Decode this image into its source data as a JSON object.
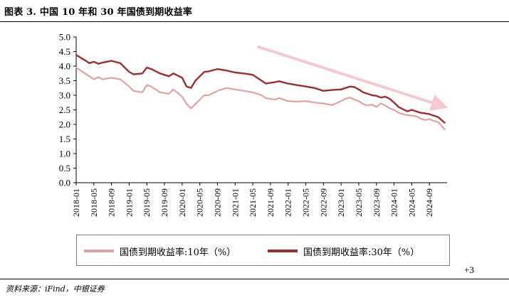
{
  "title": "图表 3.  中国 10 年和 30 年国债到期收益率",
  "source": "资料来源：iFind，中银证券",
  "side_note": "+3",
  "colors": {
    "y10": "#e0a2a2",
    "y30": "#9c2e31",
    "arrow": "#f4c9cf"
  },
  "chart_data": {
    "type": "line",
    "title": "中国 10 年和 30 年国债到期收益率",
    "xlabel": "",
    "ylabel": "",
    "ylim": [
      0.0,
      5.0
    ],
    "yticks": [
      "0.0",
      "0.5",
      "1.0",
      "1.5",
      "2.0",
      "2.5",
      "3.0",
      "3.5",
      "4.0",
      "4.5",
      "5.0"
    ],
    "xticks": [
      "2018-01",
      "2018-05",
      "2018-09",
      "2019-01",
      "2019-05",
      "2019-09",
      "2020-01",
      "2020-05",
      "2020-09",
      "2021-01",
      "2021-05",
      "2021-09",
      "2022-01",
      "2022-05",
      "2022-09",
      "2023-01",
      "2023-05",
      "2023-09",
      "2024-01",
      "2024-05",
      "2024-09"
    ],
    "x_months_from_2018_01": [
      0,
      2,
      3,
      4,
      5,
      6,
      8,
      10,
      12,
      13,
      15,
      16,
      17,
      19,
      21,
      22,
      24,
      25,
      26,
      27,
      28,
      29,
      30,
      32,
      34,
      36,
      38,
      40,
      42,
      43,
      45,
      46,
      48,
      50,
      52,
      54,
      56,
      58,
      60,
      61,
      62,
      63,
      64,
      65,
      66,
      67,
      68,
      69,
      70,
      71,
      72,
      73,
      74,
      75,
      76,
      77,
      78,
      79,
      80,
      81,
      82,
      83.5
    ],
    "series": [
      {
        "name": "国债到期收益率:10年（%）",
        "values": [
          3.95,
          3.75,
          3.65,
          3.55,
          3.62,
          3.55,
          3.6,
          3.55,
          3.3,
          3.15,
          3.1,
          3.35,
          3.3,
          3.1,
          3.05,
          3.2,
          2.95,
          2.7,
          2.55,
          2.7,
          2.85,
          3.0,
          3.0,
          3.15,
          3.25,
          3.2,
          3.15,
          3.1,
          3.0,
          2.9,
          2.85,
          2.9,
          2.8,
          2.78,
          2.8,
          2.75,
          2.72,
          2.66,
          2.8,
          2.88,
          2.92,
          2.85,
          2.8,
          2.7,
          2.65,
          2.68,
          2.6,
          2.72,
          2.65,
          2.55,
          2.5,
          2.4,
          2.35,
          2.32,
          2.3,
          2.28,
          2.2,
          2.15,
          2.18,
          2.12,
          2.08,
          1.82
        ]
      },
      {
        "name": "国债到期收益率:30年（%）",
        "values": [
          4.38,
          4.2,
          4.1,
          4.15,
          4.08,
          4.12,
          4.18,
          4.1,
          3.8,
          3.72,
          3.75,
          3.95,
          3.9,
          3.75,
          3.65,
          3.75,
          3.6,
          3.3,
          3.25,
          3.5,
          3.65,
          3.8,
          3.82,
          3.9,
          3.85,
          3.78,
          3.75,
          3.7,
          3.5,
          3.4,
          3.45,
          3.48,
          3.4,
          3.35,
          3.3,
          3.25,
          3.15,
          3.18,
          3.2,
          3.25,
          3.3,
          3.28,
          3.2,
          3.1,
          3.05,
          3.0,
          2.98,
          2.92,
          2.95,
          2.88,
          2.75,
          2.6,
          2.52,
          2.45,
          2.5,
          2.45,
          2.4,
          2.38,
          2.35,
          2.3,
          2.25,
          2.05
        ]
      }
    ],
    "legend": [
      "国债到期收益率:10年（%）",
      "国债到期收益率:30年（%）"
    ],
    "legend_position": "bottom",
    "annotation": "downward trend arrow",
    "grid": false
  }
}
